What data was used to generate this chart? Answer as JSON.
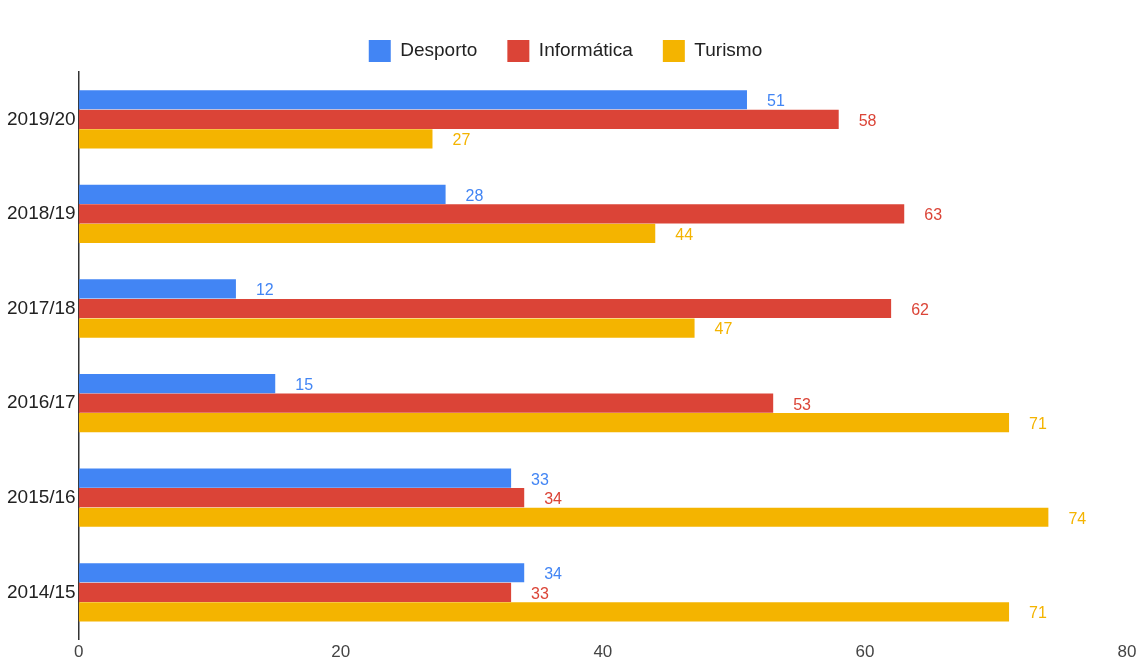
{
  "chart_data": {
    "type": "bar",
    "orientation": "horizontal",
    "categories": [
      "2019/20",
      "2018/19",
      "2017/18",
      "2016/17",
      "2015/16",
      "2014/15"
    ],
    "series": [
      {
        "name": "Desporto",
        "color": "#4285f4",
        "values": [
          51,
          28,
          12,
          15,
          33,
          34
        ]
      },
      {
        "name": "Informática",
        "color": "#db4437",
        "values": [
          58,
          63,
          62,
          53,
          34,
          33
        ]
      },
      {
        "name": "Turismo",
        "color": "#f4b400",
        "values": [
          27,
          44,
          47,
          71,
          74,
          71
        ]
      }
    ],
    "xlim": [
      0,
      80
    ],
    "xticks": [
      0,
      20,
      40,
      60,
      80
    ],
    "grid": false,
    "legend": "top",
    "data_labels": true
  }
}
